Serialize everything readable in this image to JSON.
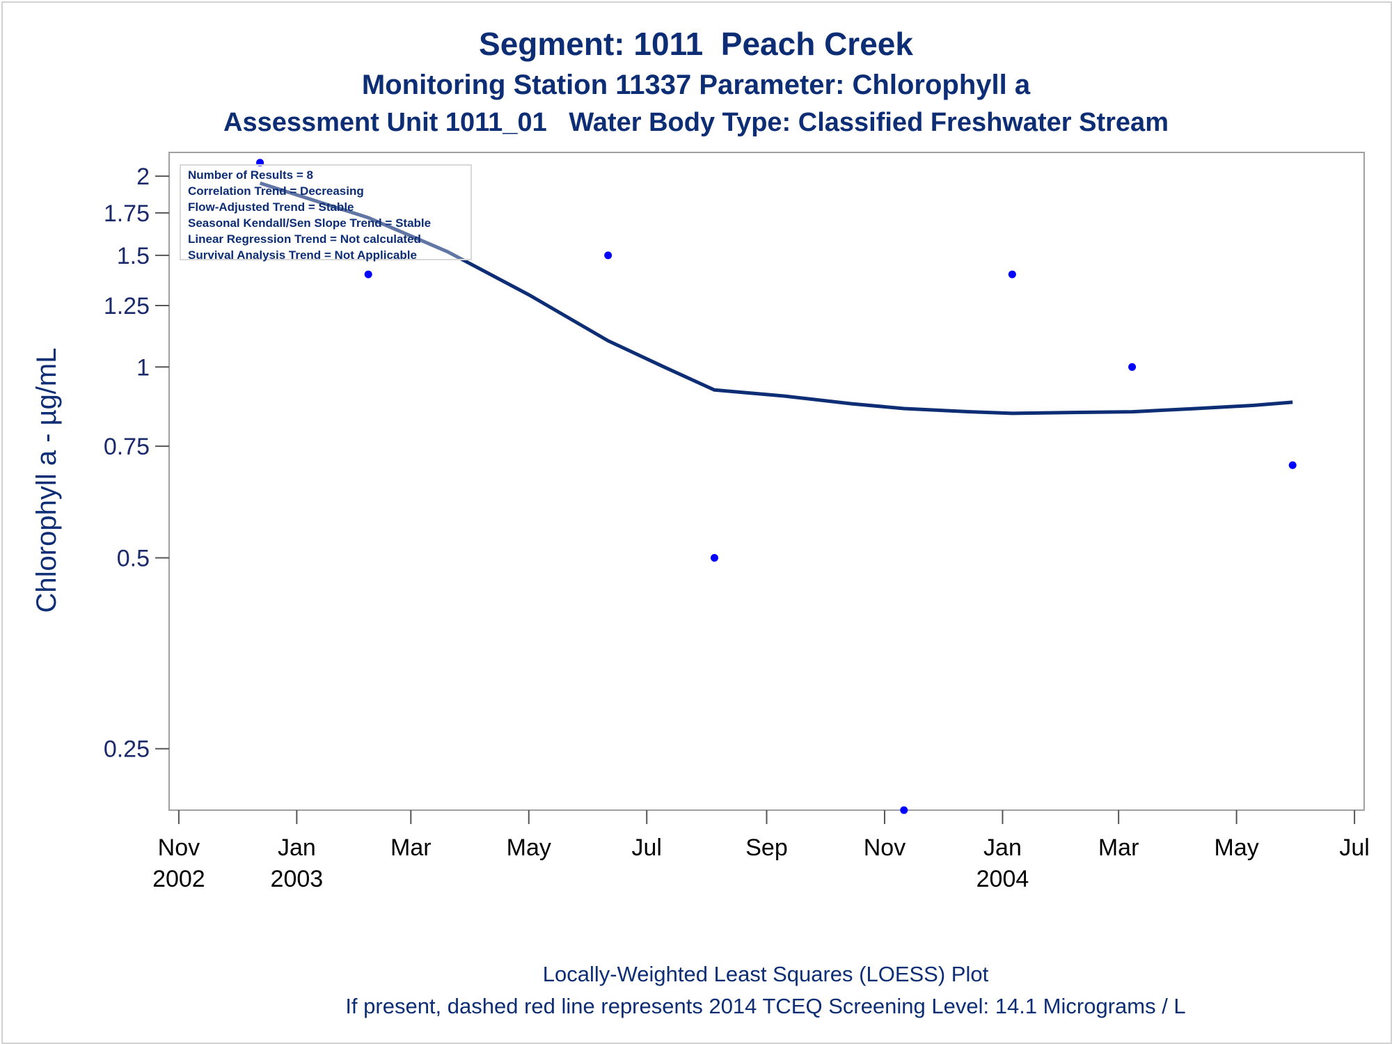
{
  "titles": {
    "line1": "Segment: 1011  Peach Creek",
    "line2": "Monitoring Station 11337 Parameter: Chlorophyll a",
    "line3": "Assessment Unit 1011_01   Water Body Type: Classified Freshwater Stream"
  },
  "stats_box": [
    "Number of Results = 8",
    "Correlation Trend = Decreasing",
    "Flow-Adjusted Trend = Stable",
    "Seasonal Kendall/Sen Slope Trend = Stable",
    "Linear Regression Trend = Not calculated",
    "Survival Analysis Trend = Not Applicable"
  ],
  "footnotes": {
    "line1": "Locally-Weighted Least Squares (LOESS) Plot",
    "line2": "If present, dashed red line represents 2014 TCEQ Screening Level: 14.1 Micrograms / L"
  },
  "colors": {
    "title": "#0d2d74",
    "points": "#0000ff",
    "loess_line": "#0d2d74",
    "axis": "#a0a0a0"
  },
  "chart_data": {
    "type": "scatter",
    "ylabel": "Chlorophyll a -  µg/mL",
    "xlabel": "",
    "y_scale": "log",
    "ylim": [
      0.2,
      2.18
    ],
    "xlim": [
      "2002-10-27",
      "2004-07-06"
    ],
    "y_ticks": [
      {
        "value": 2,
        "label": "2"
      },
      {
        "value": 1.75,
        "label": "1.75"
      },
      {
        "value": 1.5,
        "label": "1.5"
      },
      {
        "value": 1.25,
        "label": "1.25"
      },
      {
        "value": 1,
        "label": "1"
      },
      {
        "value": 0.75,
        "label": "0.75"
      },
      {
        "value": 0.5,
        "label": "0.5"
      },
      {
        "value": 0.25,
        "label": "0.25"
      }
    ],
    "x_ticks": [
      {
        "date": "2002-11-01",
        "label": "Nov",
        "year": "2002"
      },
      {
        "date": "2003-01-01",
        "label": "Jan",
        "year": "2003"
      },
      {
        "date": "2003-03-01",
        "label": "Mar",
        "year": ""
      },
      {
        "date": "2003-05-01",
        "label": "May",
        "year": ""
      },
      {
        "date": "2003-07-01",
        "label": "Jul",
        "year": ""
      },
      {
        "date": "2003-09-01",
        "label": "Sep",
        "year": ""
      },
      {
        "date": "2003-11-01",
        "label": "Nov",
        "year": ""
      },
      {
        "date": "2004-01-01",
        "label": "Jan",
        "year": "2004"
      },
      {
        "date": "2004-03-01",
        "label": "Mar",
        "year": ""
      },
      {
        "date": "2004-05-01",
        "label": "May",
        "year": ""
      },
      {
        "date": "2004-07-01",
        "label": "Jul",
        "year": ""
      }
    ],
    "series": [
      {
        "type": "scatter",
        "points": [
          {
            "x": "2002-12-13",
            "y": 2.1
          },
          {
            "x": "2003-02-07",
            "y": 1.4
          },
          {
            "x": "2003-06-11",
            "y": 1.5
          },
          {
            "x": "2003-08-05",
            "y": 0.5
          },
          {
            "x": "2003-11-11",
            "y": 0.2
          },
          {
            "x": "2004-01-06",
            "y": 1.4
          },
          {
            "x": "2004-03-08",
            "y": 1.0
          },
          {
            "x": "2004-05-30",
            "y": 0.7
          }
        ]
      },
      {
        "type": "line",
        "points": [
          {
            "x": "2002-12-13",
            "y": 1.95
          },
          {
            "x": "2003-02-07",
            "y": 1.72
          },
          {
            "x": "2003-03-20",
            "y": 1.52
          },
          {
            "x": "2003-05-01",
            "y": 1.3
          },
          {
            "x": "2003-06-11",
            "y": 1.1
          },
          {
            "x": "2003-07-10",
            "y": 1.0
          },
          {
            "x": "2003-08-05",
            "y": 0.92
          },
          {
            "x": "2003-09-10",
            "y": 0.9
          },
          {
            "x": "2003-10-15",
            "y": 0.875
          },
          {
            "x": "2003-11-11",
            "y": 0.86
          },
          {
            "x": "2003-12-15",
            "y": 0.85
          },
          {
            "x": "2004-01-06",
            "y": 0.845
          },
          {
            "x": "2004-02-10",
            "y": 0.848
          },
          {
            "x": "2004-03-08",
            "y": 0.85
          },
          {
            "x": "2004-04-10",
            "y": 0.86
          },
          {
            "x": "2004-05-10",
            "y": 0.87
          },
          {
            "x": "2004-05-30",
            "y": 0.88
          }
        ]
      }
    ]
  }
}
